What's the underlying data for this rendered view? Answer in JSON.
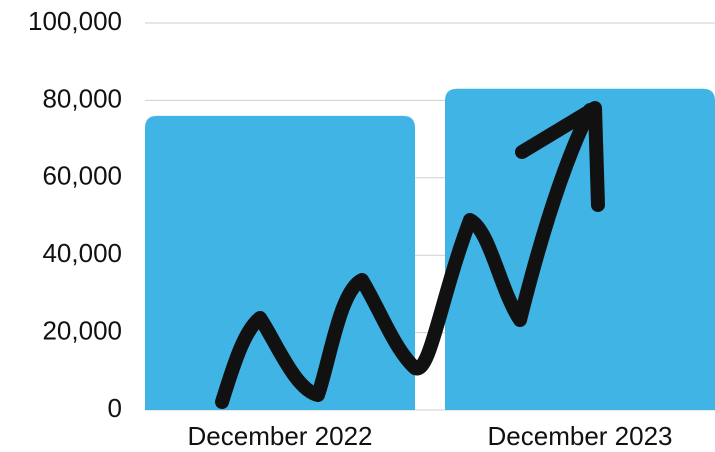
{
  "chart_data": {
    "type": "bar",
    "categories": [
      "December 2022",
      "December 2023"
    ],
    "values": [
      76000,
      83000
    ],
    "color": "#3fb4e5",
    "ylim": [
      0,
      100000
    ],
    "yticks": [
      0,
      {
        "value": 20000,
        "label": "20,000"
      },
      {
        "value": 40000,
        "label": "40,000"
      },
      {
        "value": 60000,
        "label": "60,000"
      },
      {
        "value": 80000,
        "label": "80,000"
      },
      {
        "value": 100000,
        "label": "100,000"
      }
    ],
    "grid": true
  }
}
